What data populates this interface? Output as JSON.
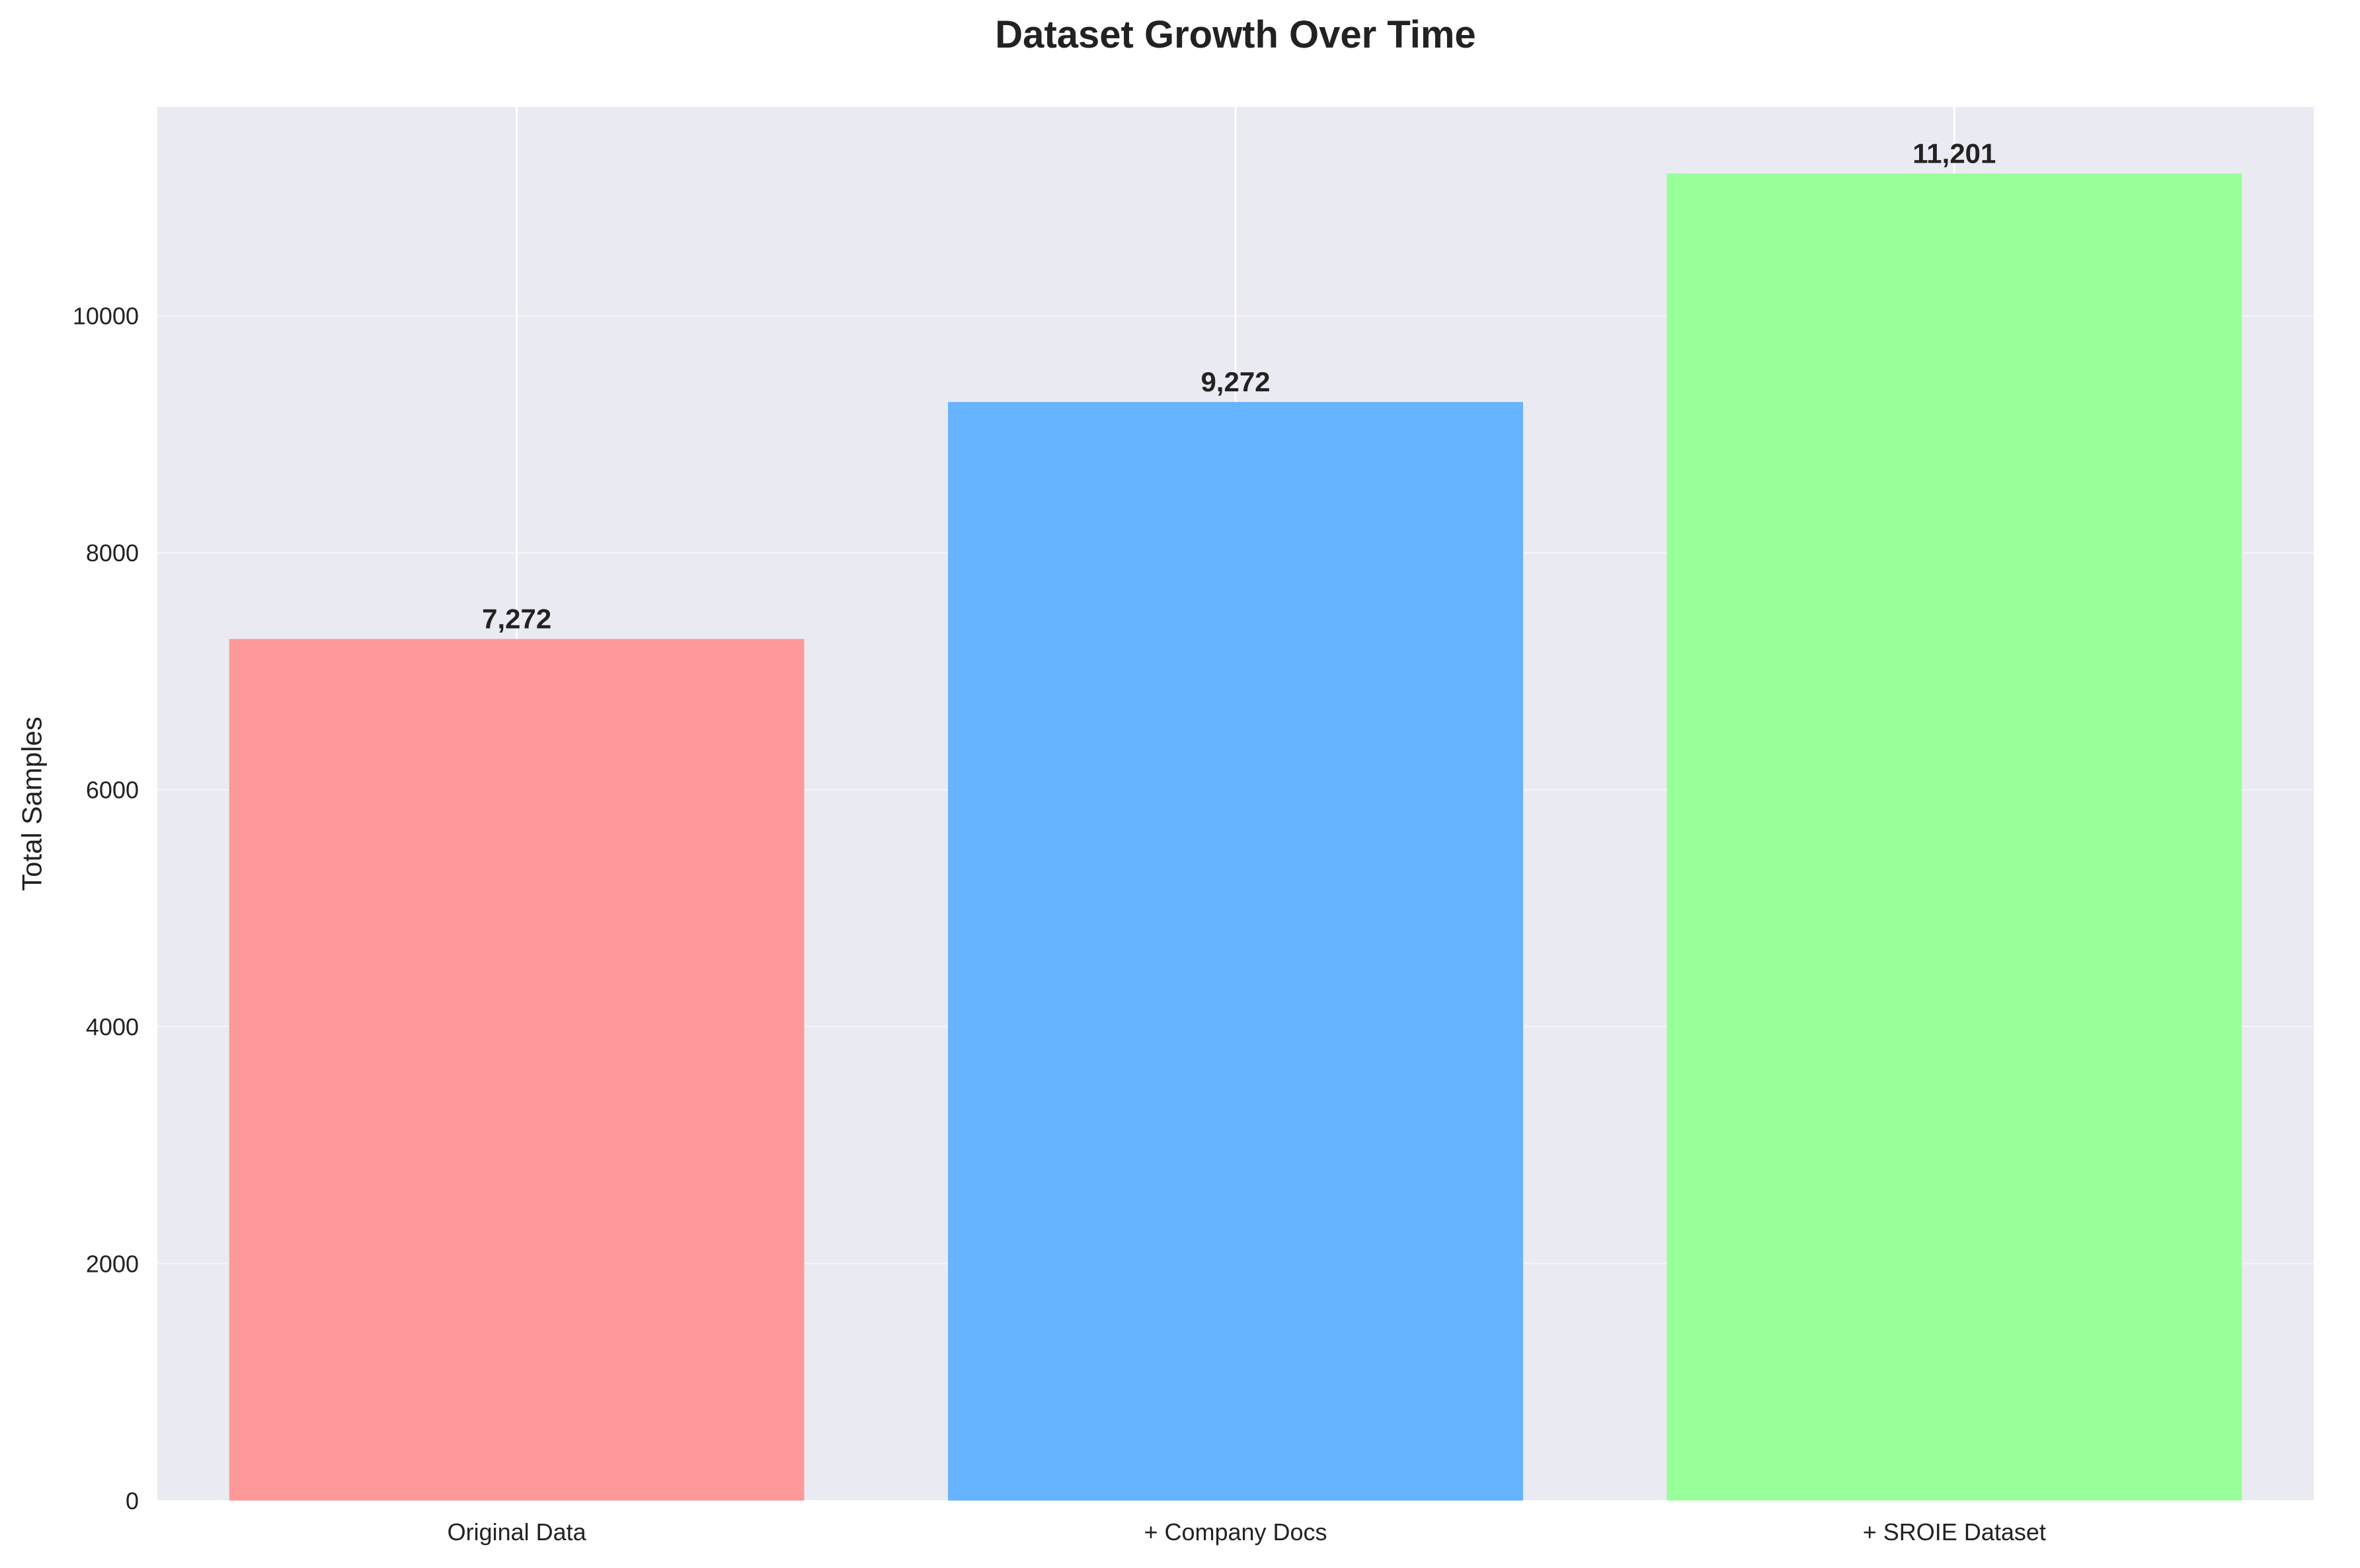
{
  "chart_data": {
    "type": "bar",
    "title": "Dataset Growth Over Time",
    "xlabel": "",
    "ylabel": "Total Samples",
    "categories": [
      "Original Data",
      "+ Company Docs",
      "+ SROIE Dataset"
    ],
    "values": [
      7272,
      9272,
      11201
    ],
    "data_labels": [
      "7,272",
      "9,272",
      "11,201"
    ],
    "ylim": [
      0,
      11761
    ],
    "yticks": [
      0,
      2000,
      4000,
      6000,
      8000,
      10000
    ],
    "grid": true,
    "legend": "none",
    "colors": {
      "bars": [
        "#ff9999",
        "#66b3ff",
        "#99ff99"
      ],
      "plot_background": "#eaeaf2",
      "grid": "#ffffff",
      "text": "#222222"
    }
  }
}
